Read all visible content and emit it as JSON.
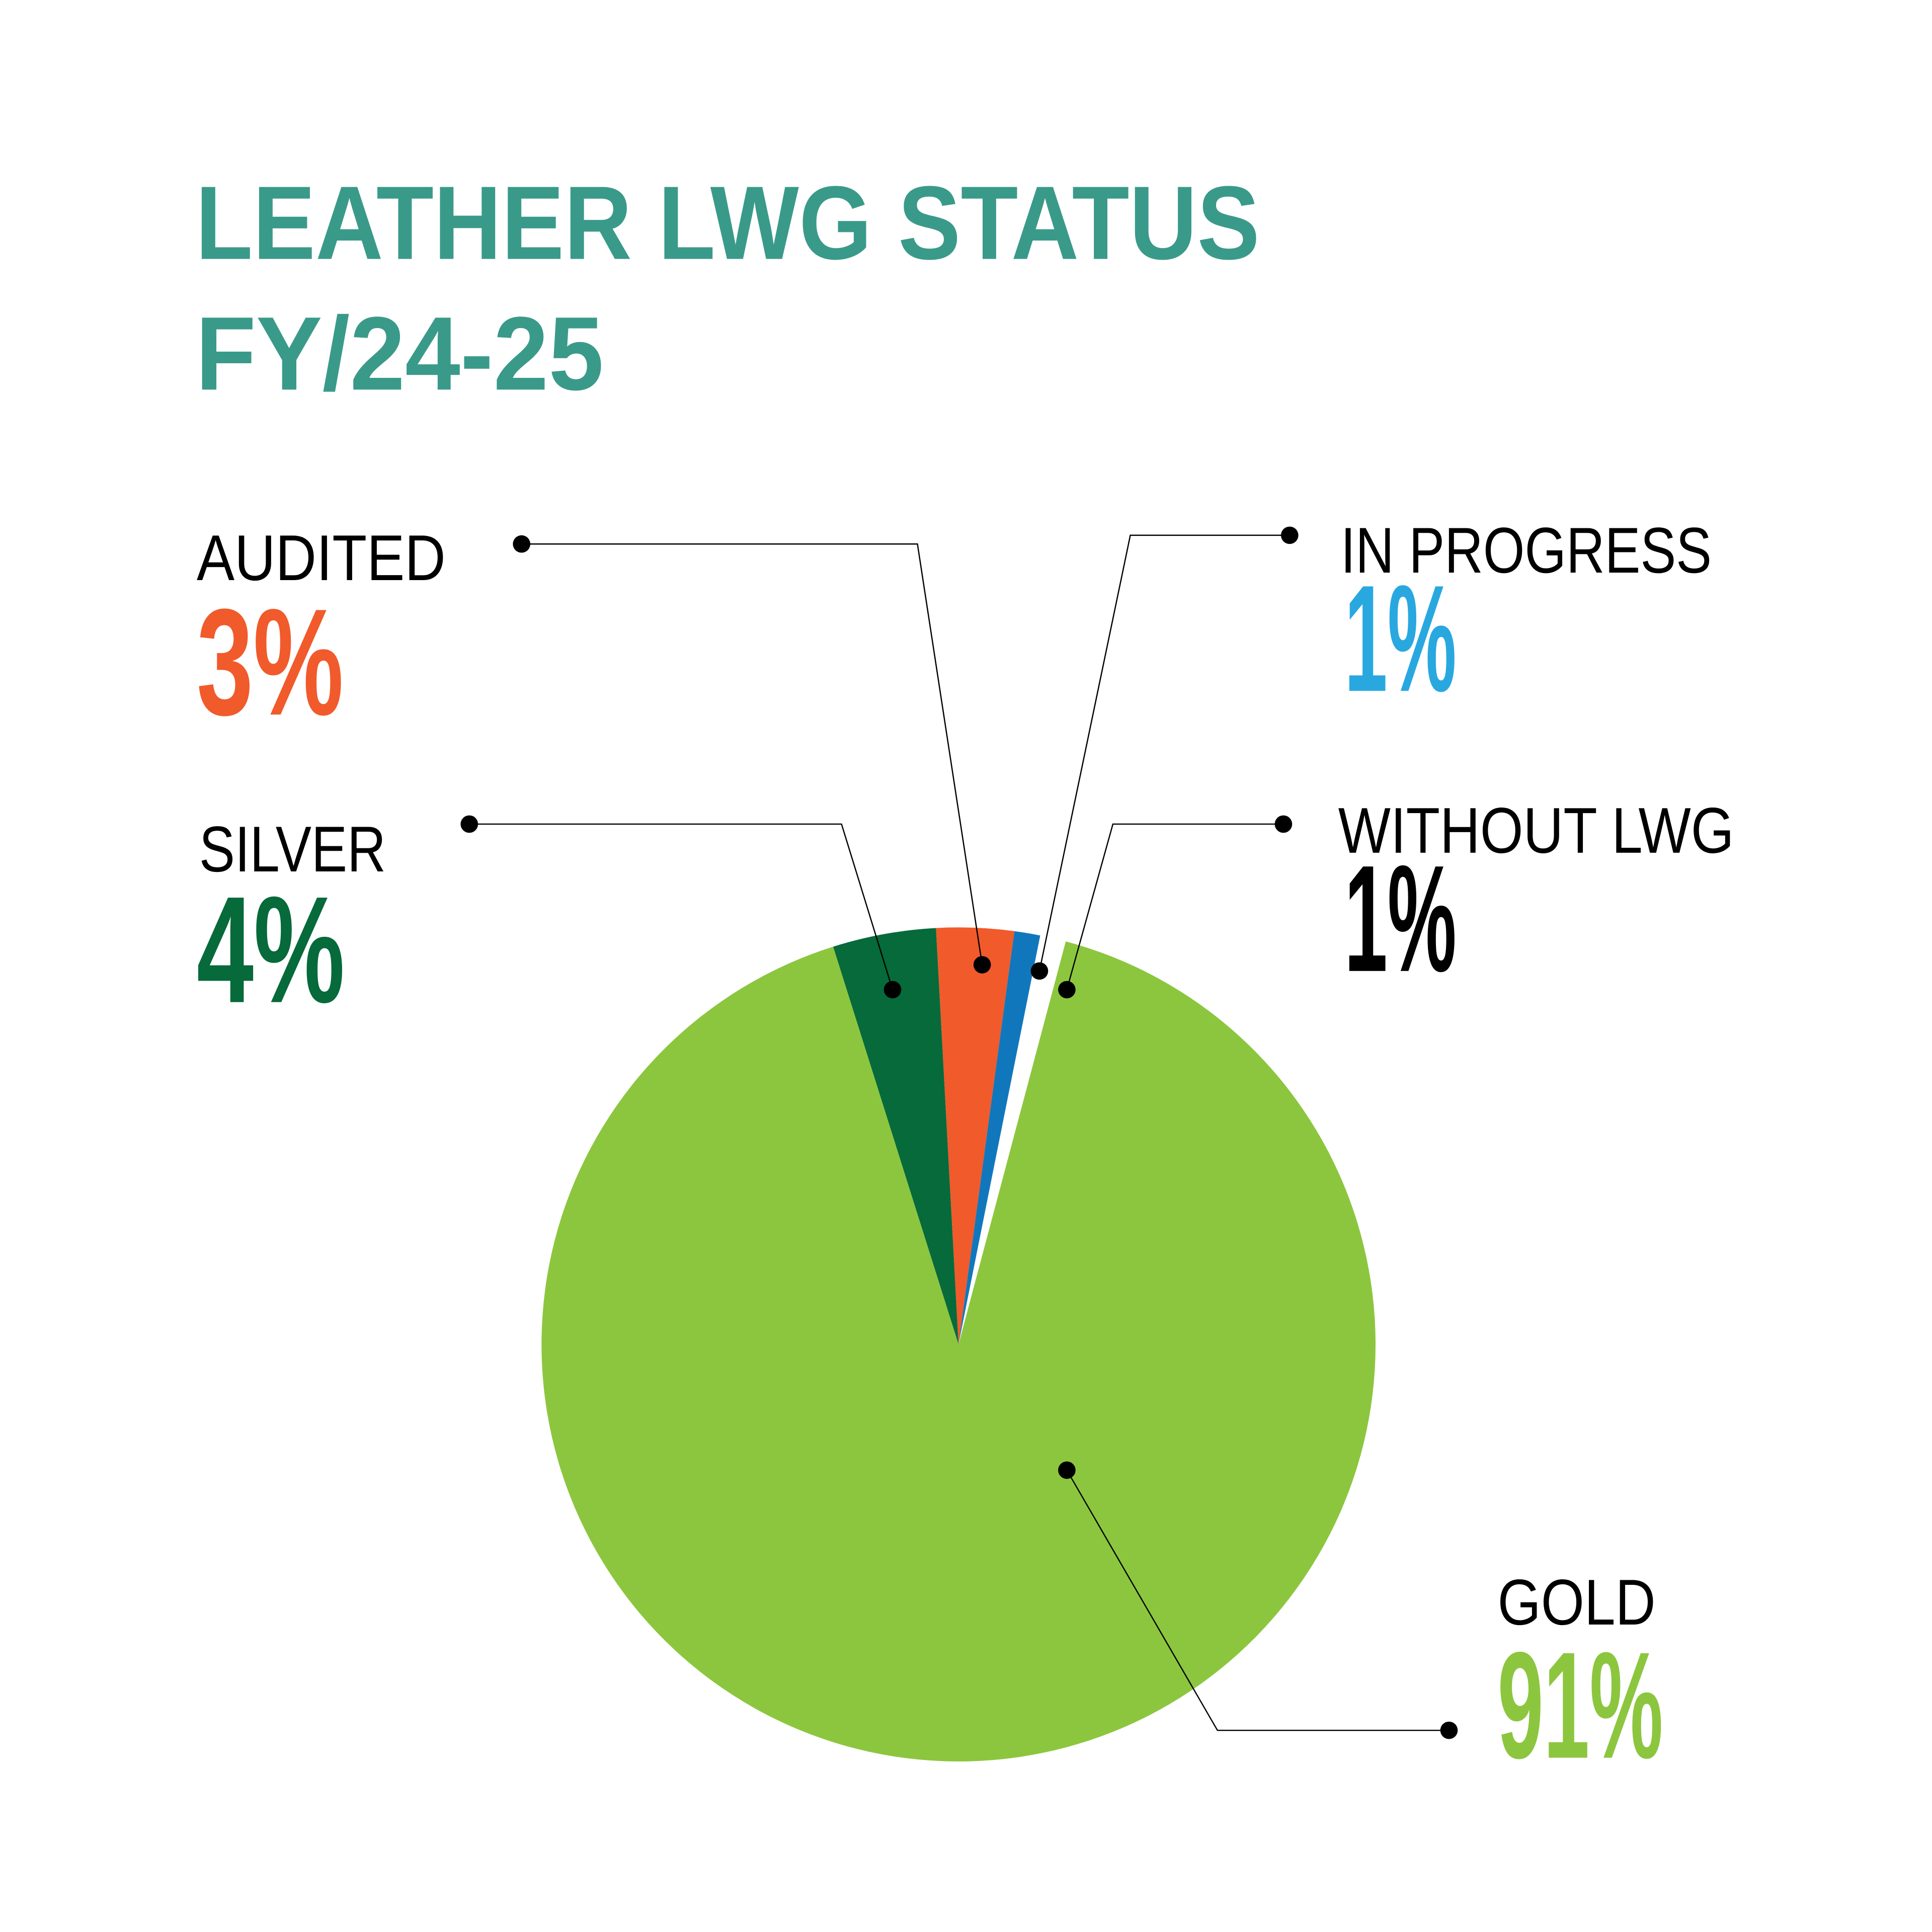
{
  "chart_data": {
    "type": "pie",
    "title": "LEATHER LWG STATUS",
    "subtitle": "FY/24-25",
    "title_color": "#3a9a8a",
    "slices": [
      {
        "label": "SILVER",
        "value": 4,
        "value_label": "4%",
        "color": "#066a3b",
        "text_color": "#066a3b"
      },
      {
        "label": "AUDITED",
        "value": 3,
        "value_label": "3%",
        "color": "#f15a2b",
        "text_color": "#f15a2b"
      },
      {
        "label": "IN PROGRESS",
        "value": 1,
        "value_label": "1%",
        "color": "#1177bc",
        "text_color": "#29a8e0"
      },
      {
        "label": "WITHOUT LWG",
        "value": 1,
        "value_label": "1%",
        "color": "#ffffff",
        "text_color": "#000000"
      },
      {
        "label": "GOLD",
        "value": 91,
        "value_label": "91%",
        "color": "#8cc63f",
        "text_color": "#8cc63f"
      }
    ],
    "legend": "callout labels with leader lines"
  }
}
